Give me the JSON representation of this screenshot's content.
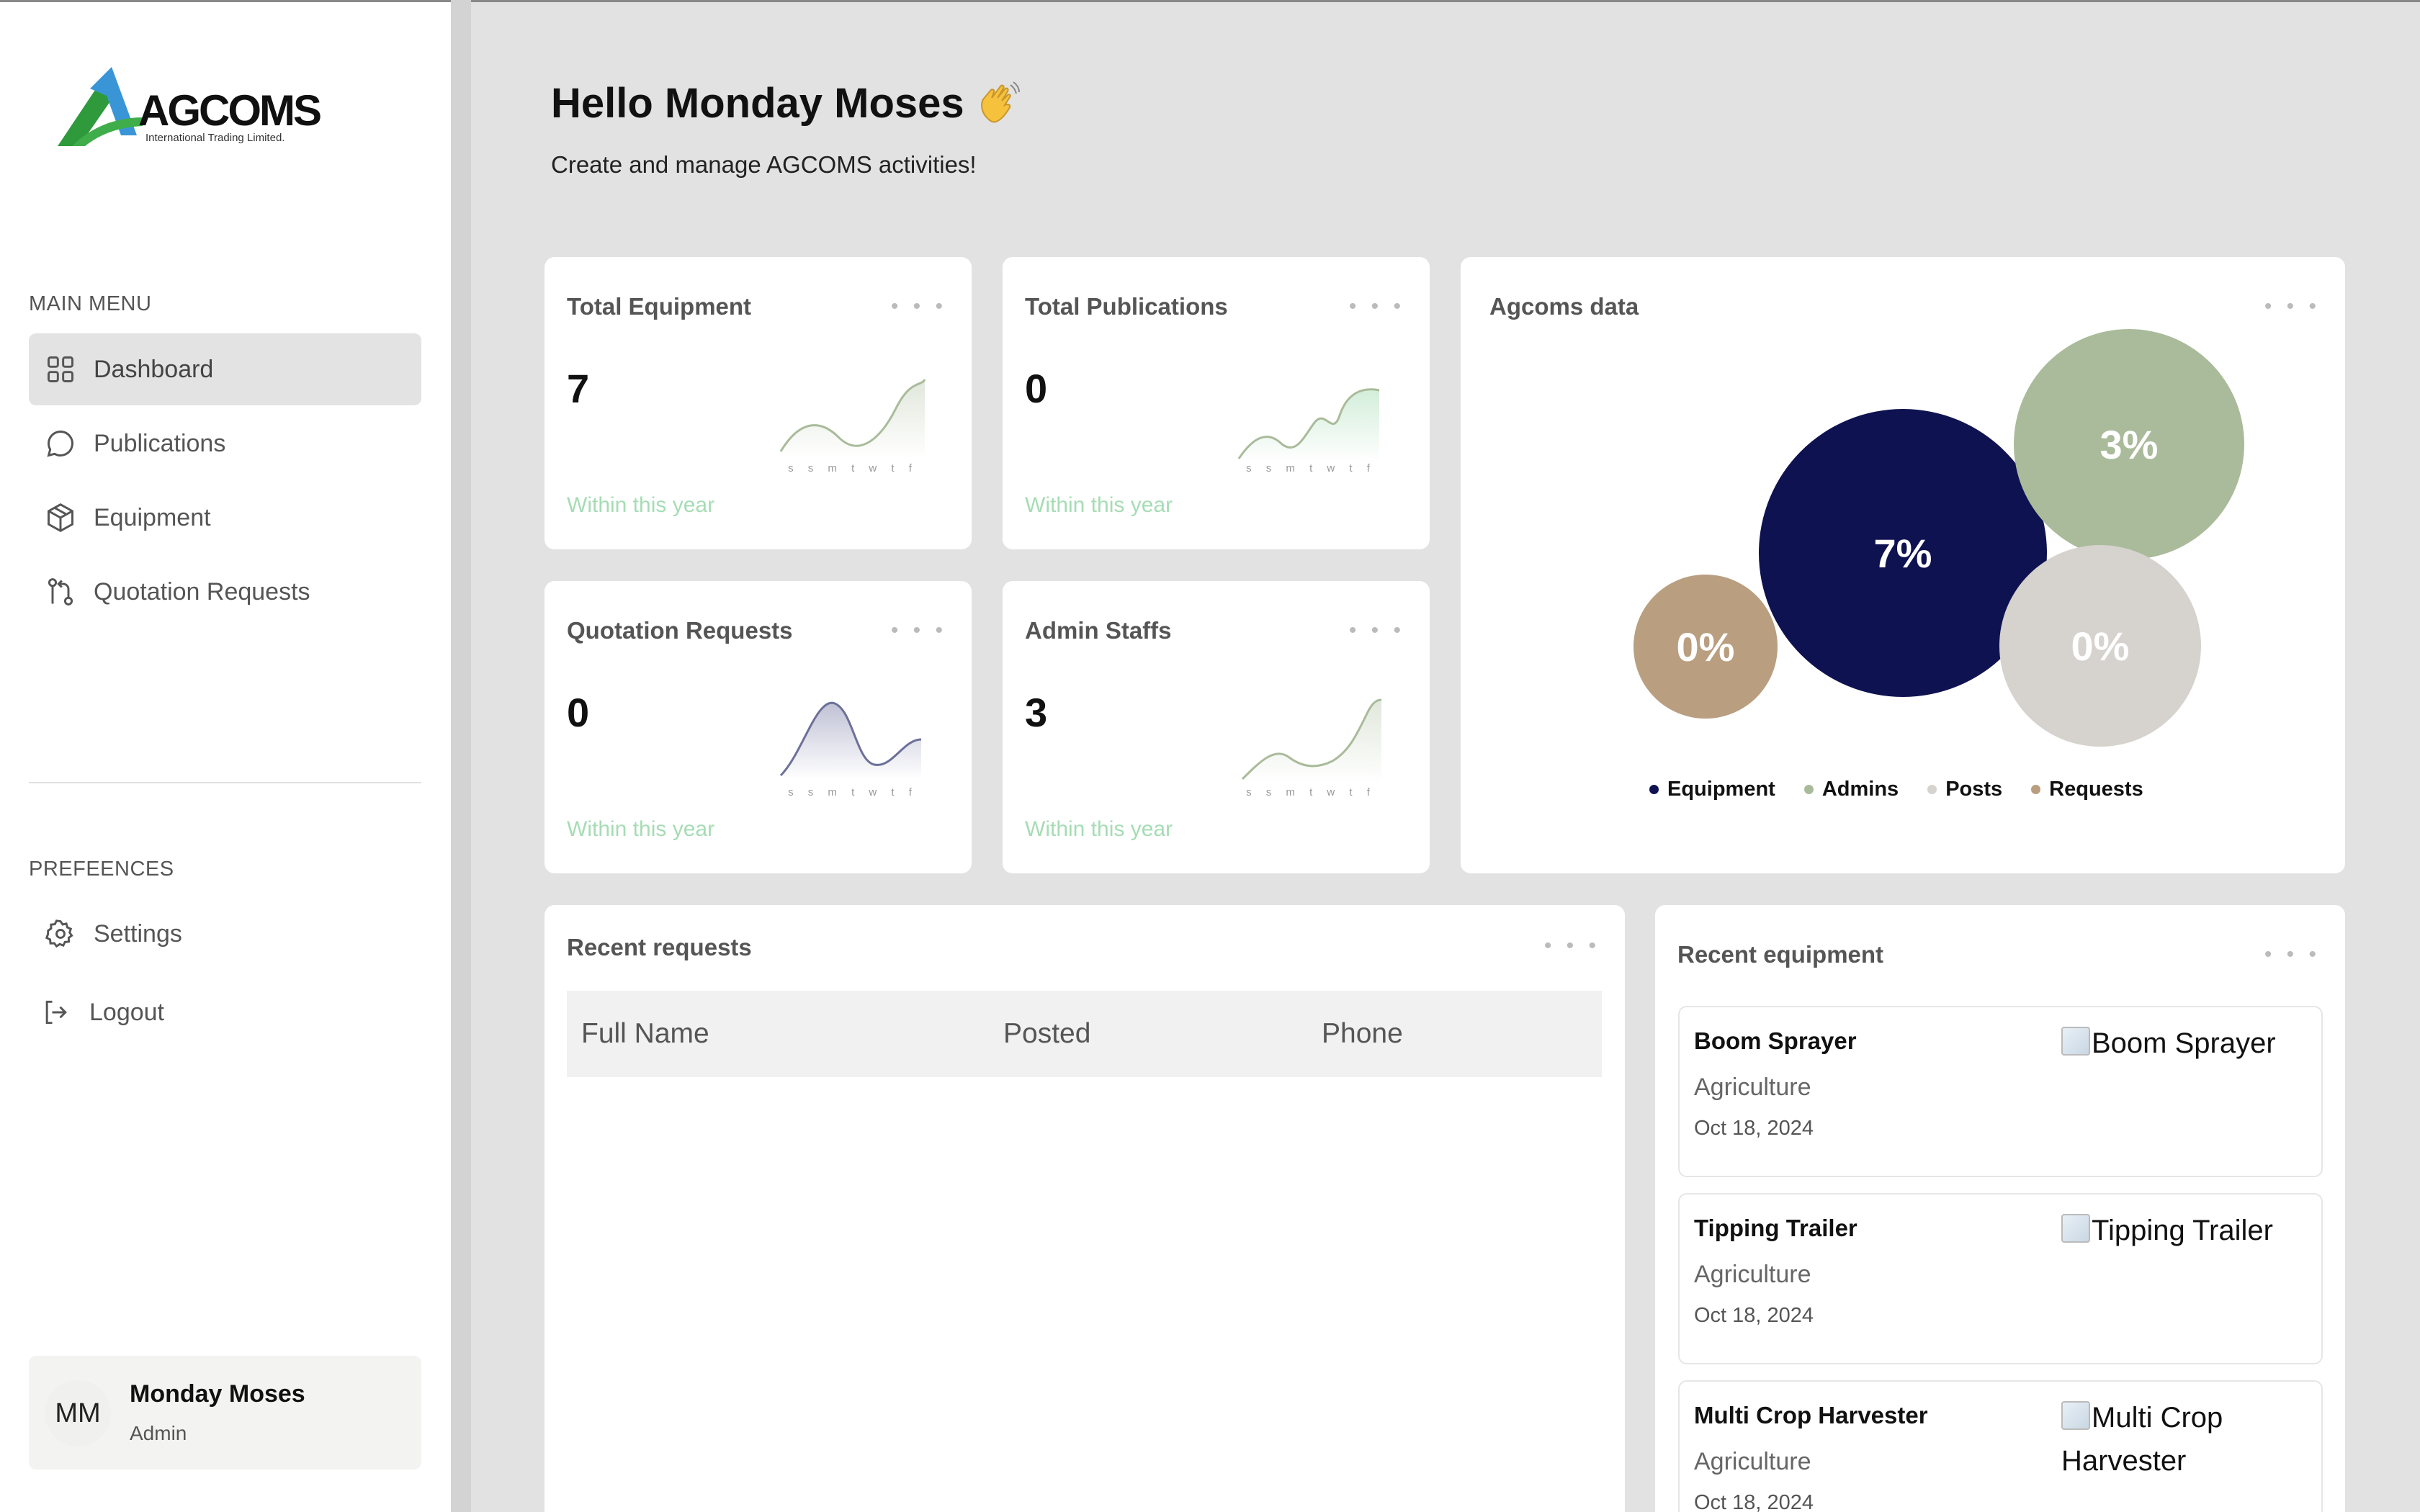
{
  "brand": {
    "name": "AGCOMS",
    "tagline": "International Trading Limited."
  },
  "sidebar": {
    "main_menu_label": "MAIN MENU",
    "items": [
      {
        "label": "Dashboard",
        "icon": "grid-icon",
        "active": true
      },
      {
        "label": "Publications",
        "icon": "chat-bubble-icon"
      },
      {
        "label": "Equipment",
        "icon": "box-icon"
      },
      {
        "label": "Quotation Requests",
        "icon": "git-pull-request-icon"
      }
    ],
    "preferences_label": "PREFEENCES",
    "pref_items": [
      {
        "label": "Settings",
        "icon": "gear-icon"
      },
      {
        "label": "Logout",
        "icon": "logout-icon"
      }
    ]
  },
  "user": {
    "initials": "MM",
    "name": "Monday Moses",
    "role": "Admin"
  },
  "header": {
    "greeting": "Hello Monday Moses",
    "emoji": "waving-hand-icon",
    "subtitle": "Create and manage AGCOMS activities!"
  },
  "stats": [
    {
      "title": "Total Equipment",
      "value": "7",
      "sub": "Within this year",
      "days": "s s m t w t f"
    },
    {
      "title": "Total Publications",
      "value": "0",
      "sub": "Within this year",
      "days": "s s m t w t f"
    },
    {
      "title": "Quotation Requests",
      "value": "0",
      "sub": "Within this year",
      "days": "s s m t w t f"
    },
    {
      "title": "Admin Staffs",
      "value": "3",
      "sub": "Within this year",
      "days": "s s m t w t f"
    }
  ],
  "agcoms_data": {
    "title": "Agcoms data",
    "bubbles": [
      {
        "label": "7%",
        "color": "#0e1250"
      },
      {
        "label": "3%",
        "color": "#a9bb9a"
      },
      {
        "label": "0%",
        "color": "#d6d2cd"
      },
      {
        "label": "0%",
        "color": "#b99e80"
      }
    ],
    "legend": [
      {
        "name": "Equipment",
        "color": "#0e1250"
      },
      {
        "name": "Admins",
        "color": "#a9bb9a"
      },
      {
        "name": "Posts",
        "color": "#d6d2cd"
      },
      {
        "name": "Requests",
        "color": "#b99e80"
      }
    ]
  },
  "recent_requests": {
    "title": "Recent requests",
    "columns": [
      "Full Name",
      "Posted",
      "Phone"
    ]
  },
  "recent_equipment": {
    "title": "Recent equipment",
    "items": [
      {
        "name": "Boom Sprayer",
        "category": "Agriculture",
        "date": "Oct 18, 2024",
        "img_alt": "Boom Sprayer"
      },
      {
        "name": "Tipping Trailer",
        "category": "Agriculture",
        "date": "Oct 18, 2024",
        "img_alt": "Tipping Trailer"
      },
      {
        "name": "Multi Crop Harvester",
        "category": "Agriculture",
        "date": "Oct 18, 2024",
        "img_alt": "Multi Crop Harvester"
      }
    ]
  },
  "ui": {
    "more_label": "• • •"
  }
}
